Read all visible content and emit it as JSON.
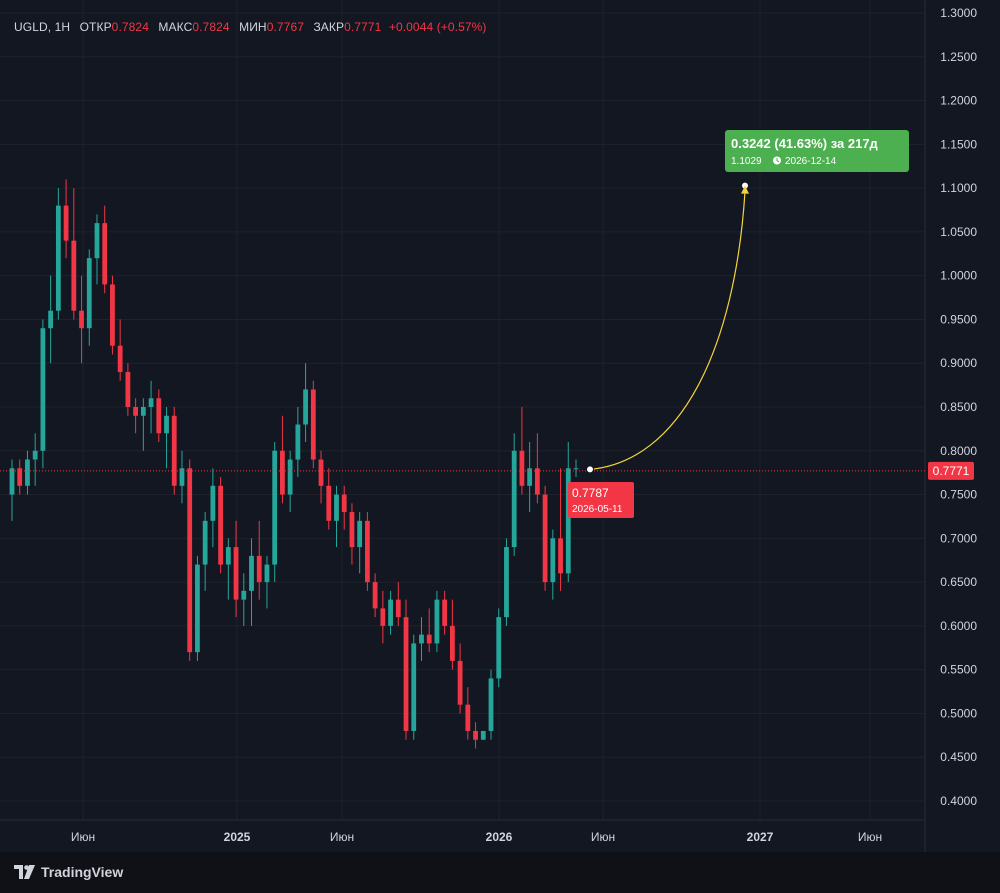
{
  "legend": {
    "symbol": "UGLD",
    "interval": "1H",
    "open_label": "ОТКР",
    "open": "0.7824",
    "high_label": "МАКС",
    "high": "0.7824",
    "low_label": "МИН",
    "low": "0.7767",
    "close_label": "ЗАКР",
    "close": "0.7771",
    "change": "+0.0044 (+0.57%)"
  },
  "brand": {
    "name": "TradingView"
  },
  "colors": {
    "background": "#131722",
    "up": "#26a69a",
    "down": "#f23645",
    "projection": "#f5d33b",
    "target_box": "#4caf50",
    "grid": "#1f222b"
  },
  "chart_data": {
    "type": "candlestick",
    "ylim": [
      0.4,
      1.3
    ],
    "y_ticks": [
      "0.4000",
      "0.4500",
      "0.5000",
      "0.5500",
      "0.6000",
      "0.6500",
      "0.7000",
      "0.7500",
      "0.8000",
      "0.8500",
      "0.9000",
      "0.9500",
      "1.0000",
      "1.0500",
      "1.1000",
      "1.1500",
      "1.2000",
      "1.2500",
      "1.3000"
    ],
    "x_ticks": [
      {
        "label": "Июн",
        "x": 83,
        "year": false
      },
      {
        "label": "2025",
        "x": 237,
        "year": true
      },
      {
        "label": "Июн",
        "x": 342,
        "year": false
      },
      {
        "label": "2026",
        "x": 499,
        "year": true
      },
      {
        "label": "Июн",
        "x": 603,
        "year": false
      },
      {
        "label": "2027",
        "x": 760,
        "year": true
      },
      {
        "label": "Июн",
        "x": 870,
        "year": false
      }
    ],
    "current_price": "0.7771",
    "start_point": {
      "price": "0.7787",
      "date": "2026-05-11"
    },
    "target_point": {
      "price": "1.1029",
      "date": "2026-12-14"
    },
    "projection_change": "0.3242 (41.63%) за 217д",
    "candles": [
      [
        0.75,
        0.79,
        0.72,
        0.78
      ],
      [
        0.78,
        0.79,
        0.75,
        0.76
      ],
      [
        0.76,
        0.8,
        0.75,
        0.79
      ],
      [
        0.79,
        0.82,
        0.76,
        0.8
      ],
      [
        0.8,
        0.95,
        0.78,
        0.94
      ],
      [
        0.94,
        1.0,
        0.9,
        0.96
      ],
      [
        0.96,
        1.1,
        0.95,
        1.08
      ],
      [
        1.08,
        1.11,
        1.02,
        1.04
      ],
      [
        1.04,
        1.1,
        0.95,
        0.96
      ],
      [
        0.96,
        1.0,
        0.9,
        0.94
      ],
      [
        0.94,
        1.03,
        0.92,
        1.02
      ],
      [
        1.02,
        1.07,
        0.99,
        1.06
      ],
      [
        1.06,
        1.08,
        0.98,
        0.99
      ],
      [
        0.99,
        1.0,
        0.91,
        0.92
      ],
      [
        0.92,
        0.95,
        0.88,
        0.89
      ],
      [
        0.89,
        0.9,
        0.84,
        0.85
      ],
      [
        0.85,
        0.86,
        0.82,
        0.84
      ],
      [
        0.84,
        0.86,
        0.8,
        0.85
      ],
      [
        0.85,
        0.88,
        0.82,
        0.86
      ],
      [
        0.86,
        0.87,
        0.81,
        0.82
      ],
      [
        0.82,
        0.85,
        0.78,
        0.84
      ],
      [
        0.84,
        0.85,
        0.75,
        0.76
      ],
      [
        0.76,
        0.8,
        0.74,
        0.78
      ],
      [
        0.78,
        0.79,
        0.56,
        0.57
      ],
      [
        0.57,
        0.68,
        0.56,
        0.67
      ],
      [
        0.67,
        0.73,
        0.64,
        0.72
      ],
      [
        0.72,
        0.78,
        0.69,
        0.76
      ],
      [
        0.76,
        0.77,
        0.66,
        0.67
      ],
      [
        0.67,
        0.7,
        0.63,
        0.69
      ],
      [
        0.69,
        0.72,
        0.61,
        0.63
      ],
      [
        0.63,
        0.66,
        0.6,
        0.64
      ],
      [
        0.64,
        0.7,
        0.6,
        0.68
      ],
      [
        0.68,
        0.72,
        0.63,
        0.65
      ],
      [
        0.65,
        0.68,
        0.62,
        0.67
      ],
      [
        0.67,
        0.81,
        0.65,
        0.8
      ],
      [
        0.8,
        0.84,
        0.74,
        0.75
      ],
      [
        0.75,
        0.8,
        0.73,
        0.79
      ],
      [
        0.79,
        0.85,
        0.77,
        0.83
      ],
      [
        0.83,
        0.9,
        0.81,
        0.87
      ],
      [
        0.87,
        0.88,
        0.78,
        0.79
      ],
      [
        0.79,
        0.8,
        0.74,
        0.76
      ],
      [
        0.76,
        0.78,
        0.71,
        0.72
      ],
      [
        0.72,
        0.76,
        0.69,
        0.75
      ],
      [
        0.75,
        0.76,
        0.71,
        0.73
      ],
      [
        0.73,
        0.74,
        0.67,
        0.69
      ],
      [
        0.69,
        0.73,
        0.66,
        0.72
      ],
      [
        0.72,
        0.73,
        0.64,
        0.65
      ],
      [
        0.65,
        0.66,
        0.61,
        0.62
      ],
      [
        0.62,
        0.64,
        0.58,
        0.6
      ],
      [
        0.6,
        0.64,
        0.59,
        0.63
      ],
      [
        0.63,
        0.65,
        0.6,
        0.61
      ],
      [
        0.61,
        0.63,
        0.47,
        0.48
      ],
      [
        0.48,
        0.59,
        0.47,
        0.58
      ],
      [
        0.58,
        0.61,
        0.56,
        0.59
      ],
      [
        0.59,
        0.62,
        0.57,
        0.58
      ],
      [
        0.58,
        0.64,
        0.57,
        0.63
      ],
      [
        0.63,
        0.64,
        0.59,
        0.6
      ],
      [
        0.6,
        0.63,
        0.55,
        0.56
      ],
      [
        0.56,
        0.58,
        0.5,
        0.51
      ],
      [
        0.51,
        0.53,
        0.47,
        0.48
      ],
      [
        0.48,
        0.49,
        0.46,
        0.47
      ],
      [
        0.47,
        0.48,
        0.47,
        0.48
      ],
      [
        0.48,
        0.55,
        0.47,
        0.54
      ],
      [
        0.54,
        0.62,
        0.53,
        0.61
      ],
      [
        0.61,
        0.7,
        0.6,
        0.69
      ],
      [
        0.69,
        0.82,
        0.68,
        0.8
      ],
      [
        0.8,
        0.85,
        0.75,
        0.76
      ],
      [
        0.76,
        0.81,
        0.73,
        0.78
      ],
      [
        0.78,
        0.82,
        0.74,
        0.75
      ],
      [
        0.75,
        0.76,
        0.64,
        0.65
      ],
      [
        0.65,
        0.71,
        0.63,
        0.7
      ],
      [
        0.7,
        0.78,
        0.64,
        0.66
      ],
      [
        0.66,
        0.81,
        0.65,
        0.78
      ],
      [
        0.78,
        0.79,
        0.77,
        0.78
      ]
    ]
  }
}
